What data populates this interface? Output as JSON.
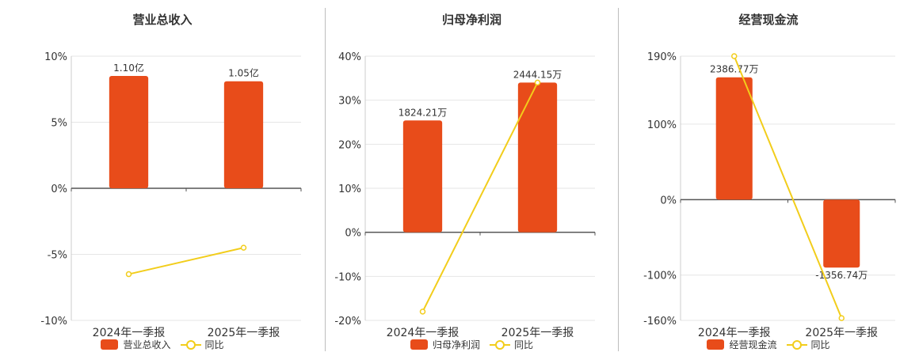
{
  "colors": {
    "bar": "#e84c1a",
    "line": "#f2cd1b",
    "grid": "#e6e6e6",
    "axis": "#555555",
    "text": "#333333"
  },
  "chart_data": [
    {
      "type": "bar",
      "title": "营业总收入",
      "categories": [
        "2024年一季报",
        "2025年一季报"
      ],
      "ylim": [
        -10,
        10
      ],
      "yticks": [
        "10%",
        "5%",
        "0%",
        "-5%",
        "-10%"
      ],
      "ytick_values": [
        10,
        5,
        0,
        -5,
        -10
      ],
      "series": [
        {
          "name": "营业总收入",
          "kind": "bar",
          "values": [
            8.5,
            8.1
          ],
          "labels": [
            "1.10亿",
            "1.05亿"
          ]
        },
        {
          "name": "同比",
          "kind": "line",
          "values": [
            -6.5,
            -4.5
          ]
        }
      ],
      "grid": true,
      "legend": "bottom-center"
    },
    {
      "type": "bar",
      "title": "归母净利润",
      "categories": [
        "2024年一季报",
        "2025年一季报"
      ],
      "ylim": [
        -20,
        40
      ],
      "yticks": [
        "40%",
        "30%",
        "20%",
        "10%",
        "0%",
        "-10%",
        "-20%"
      ],
      "ytick_values": [
        40,
        30,
        20,
        10,
        0,
        -10,
        -20
      ],
      "series": [
        {
          "name": "归母净利润",
          "kind": "bar",
          "values": [
            25.4,
            34.0
          ],
          "labels": [
            "1824.21万",
            "2444.15万"
          ]
        },
        {
          "name": "同比",
          "kind": "line",
          "values": [
            -18.0,
            34.0
          ]
        }
      ],
      "grid": true,
      "legend": "bottom-center"
    },
    {
      "type": "bar",
      "title": "经营现金流",
      "categories": [
        "2024年一季报",
        "2025年一季报"
      ],
      "ylim": [
        -160,
        190
      ],
      "yticks": [
        "190%",
        "100%",
        "0%",
        "-100%",
        "-160%"
      ],
      "ytick_values": [
        190,
        100,
        0,
        -100,
        -160
      ],
      "series": [
        {
          "name": "经营现金流",
          "kind": "bar",
          "values": [
            162,
            -90
          ],
          "labels": [
            "2386.77万",
            "-1356.74万"
          ]
        },
        {
          "name": "同比",
          "kind": "line",
          "values": [
            190,
            -157
          ]
        }
      ],
      "grid": true,
      "legend": "bottom-center"
    }
  ]
}
